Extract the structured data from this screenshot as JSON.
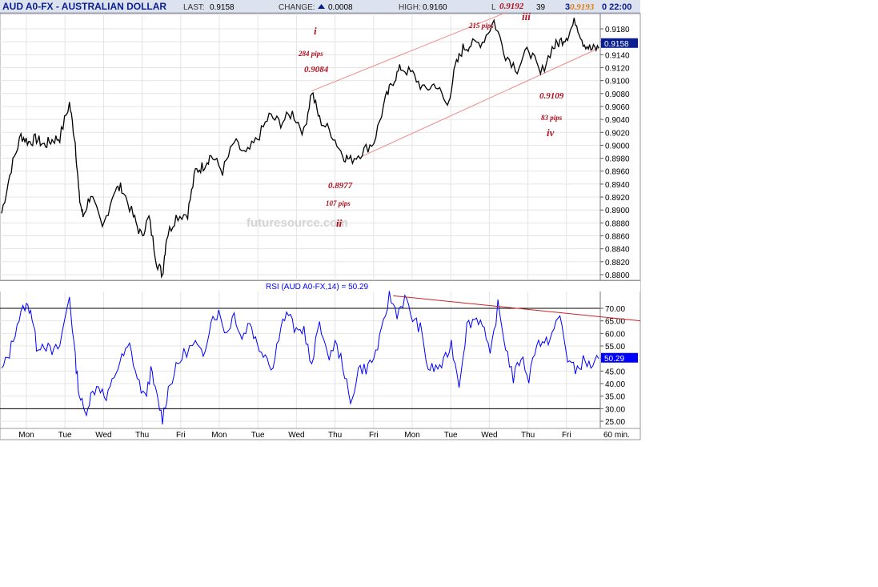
{
  "header": {
    "symbol_title": "AUD A0-FX - AUSTRALIAN DOLLAR",
    "last_label": "LAST:",
    "last_value": "0.9158",
    "change_label": "CHANGE:",
    "change_value": "0.0008",
    "high_label": "HIGH:",
    "high_value": "0.9160",
    "low_label_partial": "L",
    "low_value_partial": "39",
    "time_partial": "3",
    "time_value": "0 22:00"
  },
  "colors": {
    "header_bg": "#dde3ee",
    "title_color": "#0a1f8f",
    "price_line": "#000000",
    "rsi_line": "#0000ff",
    "channel": "#f08a8a",
    "trendline": "#cc2222",
    "annotation": "#b01020",
    "last_badge_bg": "#0a1f8f",
    "rsi_badge_bg": "#0000ff"
  },
  "chart_data": [
    {
      "type": "line",
      "panel": "price",
      "price_axis_ticks": [
        "0.9180",
        "0.9160",
        "0.9140",
        "0.9120",
        "0.9100",
        "0.9080",
        "0.9060",
        "0.9040",
        "0.9020",
        "0.9000",
        "0.8980",
        "0.8960",
        "0.8940",
        "0.8920",
        "0.8900",
        "0.8880",
        "0.8860",
        "0.8840",
        "0.8820",
        "0.8800"
      ],
      "ylim": [
        0.8795,
        0.92
      ],
      "last_price_badge": "0.9158",
      "x_day_labels": [
        "Mon",
        "Tue",
        "Wed",
        "Thu",
        "Fri",
        "Mon",
        "Tue",
        "Wed",
        "Thu",
        "Fri",
        "Mon",
        "Tue",
        "Wed",
        "Thu",
        "Fri"
      ],
      "interval_label": "60 min.",
      "x_range": [
        0,
        15.4
      ],
      "series": [
        {
          "x": [
            0.0,
            0.25,
            0.5,
            0.7,
            0.9,
            1.1,
            1.3,
            1.5,
            1.75,
            1.9,
            2.0,
            2.1,
            2.3,
            2.6,
            2.9,
            3.1,
            3.4,
            3.6,
            3.8,
            4.0,
            4.15,
            4.25,
            4.5,
            4.8,
            5.0,
            5.2,
            5.4,
            5.7,
            6.0,
            6.3,
            6.6,
            6.9,
            7.2,
            7.5,
            7.8,
            8.0,
            8.2,
            8.5,
            8.8,
            9.0,
            9.3,
            9.6,
            9.9,
            10.1,
            10.3,
            10.6,
            10.9,
            11.2,
            11.5,
            11.7,
            11.9,
            12.1,
            12.4,
            12.7,
            13.0,
            13.3,
            13.6,
            13.9,
            14.2,
            14.4,
            14.6,
            14.8,
            15.0,
            15.2,
            15.4
          ],
          "y": [
            0.8895,
            0.8965,
            0.9015,
            0.9005,
            0.901,
            0.9,
            0.9008,
            0.9012,
            0.9065,
            0.9005,
            0.892,
            0.889,
            0.8925,
            0.887,
            0.893,
            0.8935,
            0.889,
            0.886,
            0.8888,
            0.882,
            0.88,
            0.8858,
            0.889,
            0.8895,
            0.896,
            0.8968,
            0.8985,
            0.896,
            0.9005,
            0.8985,
            0.901,
            0.9045,
            0.9035,
            0.905,
            0.902,
            0.9084,
            0.904,
            0.902,
            0.8985,
            0.8977,
            0.899,
            0.9005,
            0.907,
            0.91,
            0.912,
            0.911,
            0.9085,
            0.9095,
            0.906,
            0.912,
            0.915,
            0.9155,
            0.916,
            0.9192,
            0.914,
            0.9118,
            0.915,
            0.9109,
            0.915,
            0.916,
            0.917,
            0.9193,
            0.916,
            0.9148,
            0.915
          ]
        }
      ],
      "channel_lines": [
        {
          "x": [
            8.0,
            13.0
          ],
          "y": [
            0.9084,
            0.9205
          ]
        },
        {
          "x": [
            9.3,
            15.4
          ],
          "y": [
            0.8983,
            0.915
          ]
        }
      ],
      "annotations": [
        {
          "text": "i",
          "kind": "wave"
        },
        {
          "text": "284 pips",
          "kind": "pips"
        },
        {
          "text": "0.9084",
          "kind": "price"
        },
        {
          "text": "0.8977",
          "kind": "price"
        },
        {
          "text": "107  pips",
          "kind": "pips"
        },
        {
          "text": "ii",
          "kind": "wave"
        },
        {
          "text": "0.9192",
          "kind": "price"
        },
        {
          "text": "215 pips",
          "kind": "pips"
        },
        {
          "text": "iii",
          "kind": "wave"
        },
        {
          "text": "0.9193",
          "kind": "price_orange"
        },
        {
          "text": "0.9109",
          "kind": "price"
        },
        {
          "text": "83 pips",
          "kind": "pips"
        },
        {
          "text": "iv",
          "kind": "wave"
        },
        {
          "text": "0.8800",
          "kind": "price"
        }
      ],
      "watermark": "futuresource.com"
    },
    {
      "type": "line",
      "panel": "rsi",
      "title": "RSI (AUD A0-FX,14) = 50.29",
      "rsi_axis_ticks": [
        "70.00",
        "65.00",
        "60.00",
        "55.00",
        "50.00",
        "45.00",
        "40.00",
        "35.00",
        "30.00",
        "25.00"
      ],
      "ylim": [
        23,
        78
      ],
      "reference_lines": [
        30,
        70
      ],
      "last_value_badge": "50.29",
      "series": [
        {
          "x": [
            0.0,
            0.2,
            0.4,
            0.6,
            0.75,
            0.9,
            1.1,
            1.3,
            1.5,
            1.75,
            1.9,
            2.0,
            2.15,
            2.3,
            2.5,
            2.7,
            2.9,
            3.1,
            3.3,
            3.5,
            3.7,
            3.85,
            4.0,
            4.15,
            4.3,
            4.5,
            4.7,
            5.0,
            5.2,
            5.4,
            5.6,
            5.8,
            6.0,
            6.2,
            6.4,
            6.6,
            6.8,
            7.0,
            7.2,
            7.4,
            7.6,
            7.8,
            8.0,
            8.2,
            8.4,
            8.6,
            8.8,
            9.0,
            9.2,
            9.4,
            9.6,
            9.8,
            10.0,
            10.2,
            10.4,
            10.6,
            10.8,
            11.0,
            11.2,
            11.4,
            11.6,
            11.8,
            12.0,
            12.2,
            12.4,
            12.6,
            12.8,
            13.0,
            13.2,
            13.4,
            13.6,
            13.8,
            14.0,
            14.2,
            14.4,
            14.6,
            14.8,
            15.0,
            15.2,
            15.4
          ],
          "y": [
            45,
            52,
            64,
            71,
            70,
            55,
            56,
            52,
            55,
            75,
            50,
            36,
            28,
            35,
            40,
            33,
            43,
            50,
            55,
            42,
            34,
            45,
            35,
            26,
            38,
            46,
            52,
            56,
            50,
            66,
            68,
            60,
            68,
            58,
            65,
            55,
            52,
            46,
            64,
            68,
            60,
            62,
            46,
            66,
            50,
            56,
            48,
            31,
            46,
            46,
            50,
            60,
            75,
            68,
            74,
            66,
            62,
            46,
            46,
            48,
            56,
            40,
            63,
            66,
            65,
            50,
            71,
            55,
            42,
            51,
            42,
            57,
            55,
            60,
            67,
            50,
            45,
            49,
            47,
            50
          ]
        }
      ],
      "trendline": {
        "x": [
          10.1,
          16.0
        ],
        "y": [
          75,
          65
        ]
      }
    }
  ]
}
